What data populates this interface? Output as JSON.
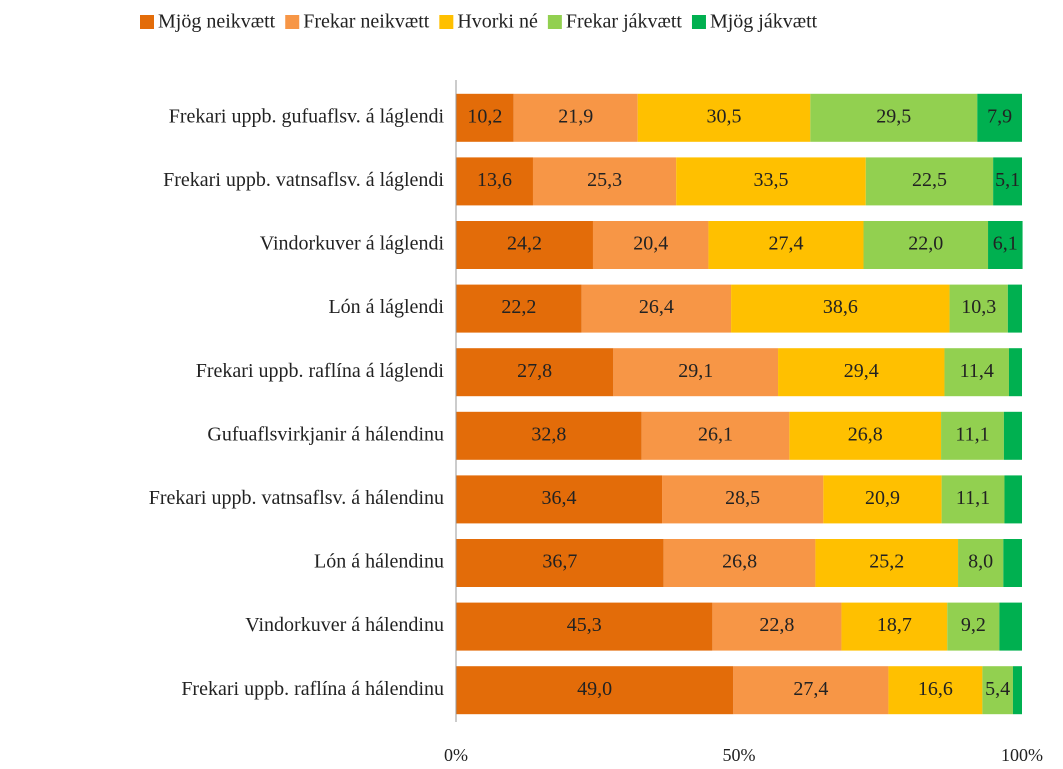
{
  "chart_data": {
    "type": "stacked-barh",
    "categories": [
      "Frekari uppb. gufuaflsv. á láglendi",
      "Frekari uppb. vatnsaflsv. á láglendi",
      "Vindorkuver á láglendi",
      "Lón á láglendi",
      "Frekari uppb. raflína á láglendi",
      "Gufuaflsvirkjanir á hálendinu",
      "Frekari uppb. vatnsaflsv. á hálendinu",
      "Lón á hálendinu",
      "Vindorkuver á hálendinu",
      "Frekari uppb. raflína á hálendinu"
    ],
    "series": [
      {
        "name": "Mjög neikvætt",
        "color": "#e36c09",
        "values": [
          10.2,
          13.6,
          24.2,
          22.2,
          27.8,
          32.8,
          36.4,
          36.7,
          45.3,
          49.0
        ],
        "value_labels": [
          "10,2",
          "13,6",
          "24,2",
          "22,2",
          "27,8",
          "32,8",
          "36,4",
          "36,7",
          "45,3",
          "49,0"
        ]
      },
      {
        "name": "Frekar neikvætt",
        "color": "#f79646",
        "values": [
          21.9,
          25.3,
          20.4,
          26.4,
          29.1,
          26.1,
          28.5,
          26.8,
          22.8,
          27.4
        ],
        "value_labels": [
          "21,9",
          "25,3",
          "20,4",
          "26,4",
          "29,1",
          "26,1",
          "28,5",
          "26,8",
          "22,8",
          "27,4"
        ]
      },
      {
        "name": "Hvorki né",
        "color": "#ffc000",
        "values": [
          30.5,
          33.5,
          27.4,
          38.6,
          29.4,
          26.8,
          20.9,
          25.2,
          18.7,
          16.6
        ],
        "value_labels": [
          "30,5",
          "33,5",
          "27,4",
          "38,6",
          "29,4",
          "26,8",
          "20,9",
          "25,2",
          "18,7",
          "16,6"
        ]
      },
      {
        "name": "Frekar jákvætt",
        "color": "#92d050",
        "values": [
          29.5,
          22.5,
          22.0,
          10.3,
          11.4,
          11.1,
          11.1,
          8.0,
          9.2,
          5.4
        ],
        "value_labels": [
          "29,5",
          "22,5",
          "22,0",
          "10,3",
          "11,4",
          "11,1",
          "11,1",
          "8,0",
          "9,2",
          "5,4"
        ]
      },
      {
        "name": "Mjög jákvætt",
        "color": "#00b050",
        "values": [
          7.9,
          5.1,
          6.1,
          2.5,
          2.3,
          3.2,
          3.1,
          3.3,
          4.0,
          1.6
        ],
        "value_labels": [
          "7,9",
          "5,1",
          "6,1",
          null,
          null,
          null,
          null,
          null,
          null,
          null
        ]
      }
    ],
    "xlim": [
      0,
      100
    ],
    "xticks": [
      {
        "value": 0,
        "label": "0%"
      },
      {
        "value": 50,
        "label": "50%"
      },
      {
        "value": 100,
        "label": "100%"
      }
    ],
    "legend": "top"
  }
}
